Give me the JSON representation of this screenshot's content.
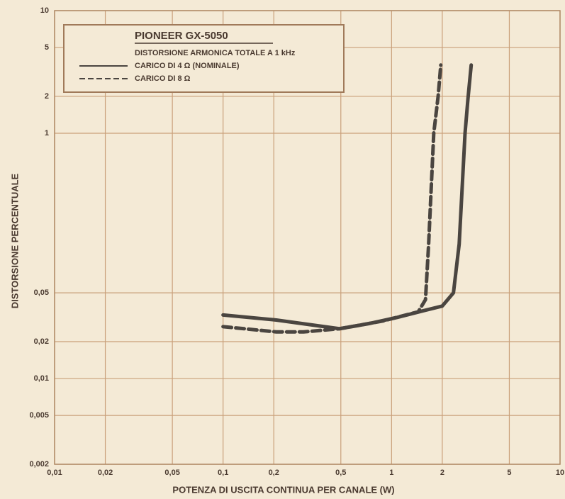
{
  "chart_data": {
    "type": "line",
    "title": "PIONEER GX-5050",
    "subtitle": "DISTORSIONE ARMONICA TOTALE A 1 kHz",
    "x_label": "POTENZA DI USCITA CONTINUA PER CANALE (W)",
    "y_label": "DISTORSIONE PERCENTUALE",
    "xlog": true,
    "ylog": true,
    "grid": true,
    "legend": "upper left",
    "xlim": [
      0.01,
      10
    ],
    "ylim": [
      0.002,
      10
    ],
    "xticks": [
      {
        "value": 0.01,
        "label": "0,01"
      },
      {
        "value": 0.02,
        "label": "0,02"
      },
      {
        "value": 0.05,
        "label": "0,05"
      },
      {
        "value": 0.1,
        "label": "0,1"
      },
      {
        "value": 0.2,
        "label": "0,2"
      },
      {
        "value": 0.5,
        "label": "0,5"
      },
      1,
      2,
      5,
      10
    ],
    "yticks": [
      {
        "value": 0.002,
        "label": "0,002"
      },
      {
        "value": 0.005,
        "label": "0,005"
      },
      {
        "value": 0.01,
        "label": "0,01"
      },
      {
        "value": 0.02,
        "label": "0,02"
      },
      {
        "value": 0.05,
        "label": "0,05"
      },
      1,
      2,
      5,
      10
    ],
    "series": [
      {
        "name": "CARICO DI 4 Ω (NOMINALE)",
        "color": "#4a4540",
        "dash": "solid",
        "x": [
          0.1,
          0.207,
          0.49,
          0.73,
          1.08,
          1.58,
          2.0,
          2.33,
          2.52,
          2.73,
          2.84,
          2.97
        ],
        "values": [
          0.033,
          0.03,
          0.0255,
          0.028,
          0.0315,
          0.036,
          0.039,
          0.05,
          0.125,
          1,
          1.9,
          3.6
        ]
      },
      {
        "name": "CARICO DI 8 Ω",
        "color": "#4a4540",
        "dash": "dashed",
        "x": [
          0.1,
          0.207,
          0.3,
          0.495,
          0.89,
          1.44,
          1.59,
          1.66,
          1.78,
          1.89,
          1.96
        ],
        "values": [
          0.0265,
          0.024,
          0.024,
          0.0255,
          0.0295,
          0.035,
          0.044,
          0.125,
          1,
          2,
          3.6
        ]
      }
    ]
  }
}
